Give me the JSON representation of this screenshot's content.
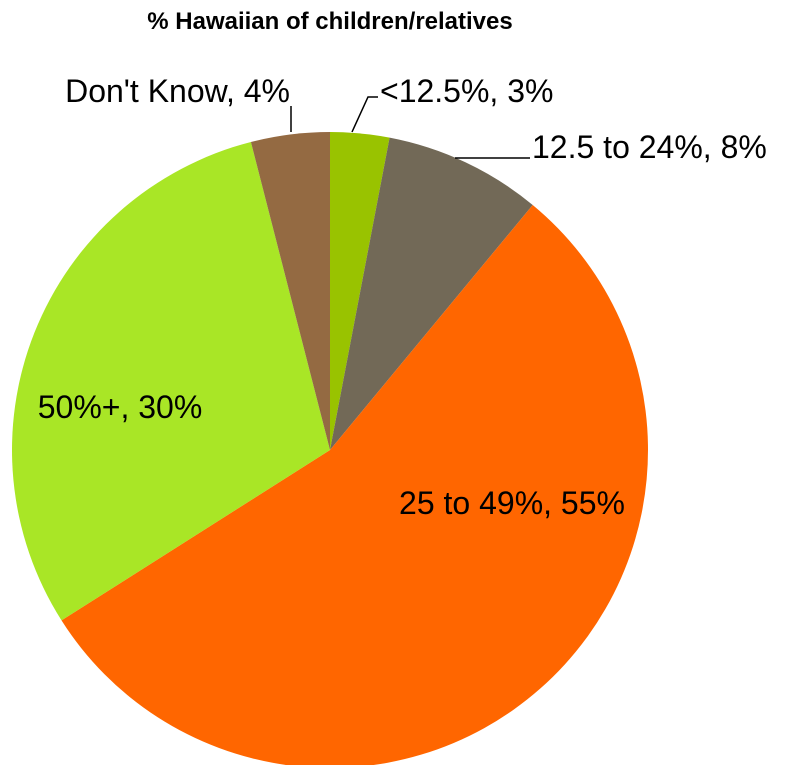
{
  "chart_data": {
    "type": "pie",
    "title": "% Hawaiian of children/relatives",
    "slices": [
      {
        "label": "<12.5%",
        "value": 3,
        "display": "<12.5%, 3%",
        "color": "#99c300"
      },
      {
        "label": "12.5 to 24%",
        "value": 8,
        "display": "12.5 to 24%, 8%",
        "color": "#726957"
      },
      {
        "label": "25 to 49%",
        "value": 55,
        "display": "25 to 49%, 55%",
        "color": "#ff6600"
      },
      {
        "label": "50%+",
        "value": 30,
        "display": "50%+, 30%",
        "color": "#a9e626"
      },
      {
        "label": "Don't Know",
        "value": 4,
        "display": "Don't Know, 4%",
        "color": "#946a42"
      }
    ]
  }
}
